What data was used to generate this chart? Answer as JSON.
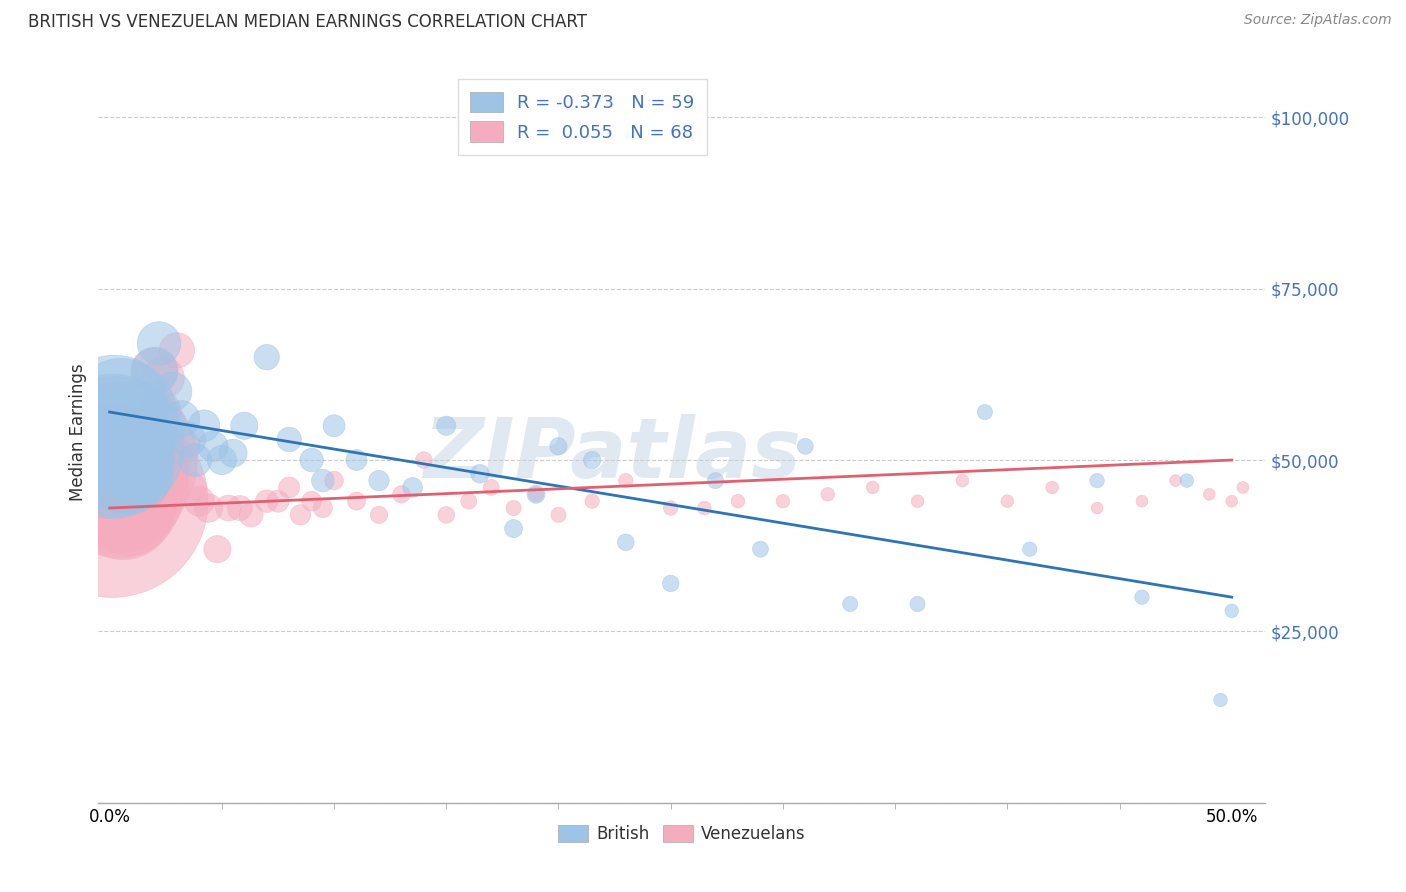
{
  "title": "BRITISH VS VENEZUELAN MEDIAN EARNINGS CORRELATION CHART",
  "source": "Source: ZipAtlas.com",
  "ylabel": "Median Earnings",
  "ytick_vals": [
    0,
    25000,
    50000,
    75000,
    100000
  ],
  "ytick_labels": [
    "",
    "$25,000",
    "$50,000",
    "$75,000",
    "$100,000"
  ],
  "ylim": [
    0,
    108000
  ],
  "xlim": [
    -0.005,
    0.515
  ],
  "xtick_vals": [
    0.0,
    0.5
  ],
  "xtick_labels": [
    "0.0%",
    "50.0%"
  ],
  "xtick_minor_vals": [
    0.05,
    0.1,
    0.15,
    0.2,
    0.25,
    0.3,
    0.35,
    0.4,
    0.45
  ],
  "british_color": "#9DC3E6",
  "venezuelan_color": "#F4ACBE",
  "british_line_color": "#2E75B6",
  "venezuelan_line_color": "#E06070",
  "watermark": "ZIPatlas",
  "legend_R_british": "-0.373",
  "legend_N_british": "59",
  "legend_R_venezuelan": "0.055",
  "legend_N_venezuelan": "68",
  "british_x": [
    0.001,
    0.002,
    0.003,
    0.004,
    0.005,
    0.006,
    0.007,
    0.008,
    0.009,
    0.01,
    0.011,
    0.012,
    0.013,
    0.014,
    0.015,
    0.016,
    0.017,
    0.018,
    0.019,
    0.02,
    0.022,
    0.025,
    0.028,
    0.032,
    0.035,
    0.038,
    0.042,
    0.046,
    0.05,
    0.055,
    0.06,
    0.07,
    0.08,
    0.09,
    0.095,
    0.1,
    0.11,
    0.12,
    0.135,
    0.15,
    0.165,
    0.18,
    0.19,
    0.2,
    0.215,
    0.23,
    0.25,
    0.27,
    0.29,
    0.31,
    0.33,
    0.36,
    0.39,
    0.41,
    0.44,
    0.46,
    0.48,
    0.495,
    0.5
  ],
  "british_y": [
    52000,
    56000,
    50000,
    54000,
    58000,
    51000,
    48000,
    55000,
    50000,
    53000,
    49000,
    57000,
    52000,
    47000,
    54000,
    51000,
    48000,
    50000,
    53000,
    63000,
    67000,
    55000,
    60000,
    56000,
    53000,
    50000,
    55000,
    52000,
    50000,
    51000,
    55000,
    65000,
    53000,
    50000,
    47000,
    55000,
    50000,
    47000,
    46000,
    55000,
    48000,
    40000,
    45000,
    52000,
    50000,
    38000,
    32000,
    47000,
    37000,
    52000,
    29000,
    29000,
    57000,
    37000,
    47000,
    30000,
    47000,
    15000,
    28000
  ],
  "british_sizes": [
    900,
    700,
    550,
    450,
    380,
    320,
    280,
    250,
    220,
    200,
    180,
    165,
    150,
    140,
    130,
    120,
    112,
    105,
    98,
    92,
    82,
    72,
    65,
    58,
    53,
    48,
    44,
    40,
    37,
    34,
    32,
    28,
    26,
    24,
    22,
    21,
    19,
    18,
    17,
    16,
    15,
    14,
    14,
    13,
    13,
    12,
    12,
    11,
    11,
    11,
    10,
    10,
    10,
    9,
    9,
    9,
    8,
    8,
    8
  ],
  "venezuelan_x": [
    0.001,
    0.002,
    0.003,
    0.004,
    0.005,
    0.006,
    0.007,
    0.008,
    0.009,
    0.01,
    0.011,
    0.012,
    0.013,
    0.014,
    0.015,
    0.016,
    0.017,
    0.018,
    0.019,
    0.02,
    0.022,
    0.024,
    0.026,
    0.028,
    0.03,
    0.033,
    0.036,
    0.04,
    0.044,
    0.048,
    0.053,
    0.058,
    0.063,
    0.07,
    0.075,
    0.08,
    0.085,
    0.09,
    0.095,
    0.1,
    0.11,
    0.12,
    0.13,
    0.14,
    0.15,
    0.16,
    0.17,
    0.18,
    0.19,
    0.2,
    0.215,
    0.23,
    0.25,
    0.265,
    0.28,
    0.3,
    0.32,
    0.34,
    0.36,
    0.38,
    0.4,
    0.42,
    0.44,
    0.46,
    0.475,
    0.49,
    0.5,
    0.505
  ],
  "venezuelan_y": [
    44000,
    50000,
    47000,
    45000,
    48000,
    43000,
    46000,
    44000,
    42000,
    45000,
    44000,
    47000,
    43000,
    45000,
    50000,
    44000,
    46000,
    43000,
    44000,
    63000,
    57000,
    62000,
    47000,
    50000,
    66000,
    52000,
    46000,
    44000,
    43000,
    37000,
    43000,
    43000,
    42000,
    44000,
    44000,
    46000,
    42000,
    44000,
    43000,
    47000,
    44000,
    42000,
    45000,
    50000,
    42000,
    44000,
    46000,
    43000,
    45000,
    42000,
    44000,
    47000,
    43000,
    43000,
    44000,
    44000,
    45000,
    46000,
    44000,
    47000,
    44000,
    46000,
    43000,
    44000,
    47000,
    45000,
    44000,
    46000
  ],
  "venezuelan_sizes": [
    1600,
    1200,
    900,
    700,
    560,
    460,
    390,
    330,
    290,
    255,
    225,
    200,
    180,
    162,
    148,
    135,
    124,
    114,
    105,
    97,
    85,
    75,
    67,
    60,
    54,
    48,
    43,
    39,
    35,
    32,
    29,
    27,
    25,
    22,
    21,
    19,
    18,
    17,
    16,
    15,
    14,
    13,
    13,
    12,
    12,
    11,
    11,
    10,
    10,
    10,
    9,
    9,
    9,
    8,
    8,
    8,
    8,
    7,
    7,
    7,
    7,
    7,
    6,
    6,
    6,
    6,
    6,
    6
  ]
}
